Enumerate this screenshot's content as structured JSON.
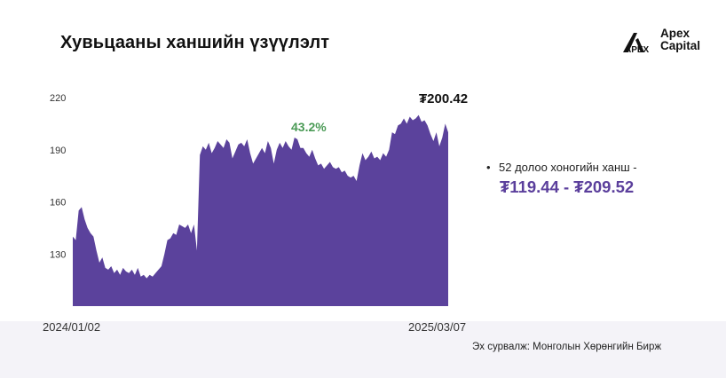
{
  "title": "Хувьцааны ханшийн үзүүлэлт",
  "logo": {
    "line1": "Apex",
    "line2": "Capital",
    "mark": "APEX"
  },
  "last_price": "₮200.42",
  "change_label": "43.2%",
  "range": {
    "label": "52 долоо хоногийн ханш -",
    "value": "₮119.44 - ₮209.52"
  },
  "source": "Эх сурвалж: Монголын Хөрөнгийн Бирж",
  "colors": {
    "area": "#5b429c",
    "change": "#4a9a55",
    "range": "#5b3f9c",
    "background_band": "#f4f3f8"
  },
  "chart_data": {
    "type": "area",
    "title": "Хувьцааны ханшийн үзүүлэлт",
    "xlabel": "",
    "ylabel": "",
    "x_start_label": "2024/01/02",
    "x_end_label": "2025/03/07",
    "y_ticks": [
      130,
      160,
      190,
      220
    ],
    "ylim": [
      100,
      220
    ],
    "grid": false,
    "legend": "none",
    "series": [
      {
        "values": [
          140,
          138,
          155,
          157,
          150,
          145,
          142,
          140,
          132,
          125,
          128,
          122,
          121,
          123,
          119,
          121,
          118,
          122,
          120,
          119,
          121,
          118,
          122,
          117,
          118,
          116,
          118,
          117,
          119,
          121,
          123,
          130,
          138,
          139,
          142,
          141,
          147,
          146,
          145,
          147,
          142,
          147,
          132,
          187,
          192,
          190,
          194,
          188,
          191,
          195,
          193,
          191,
          196,
          194,
          185,
          189,
          193,
          194,
          192,
          196,
          188,
          182,
          185,
          188,
          191,
          188,
          195,
          191,
          182,
          190,
          194,
          191,
          195,
          192,
          190,
          197,
          196,
          191,
          191,
          188,
          186,
          190,
          185,
          181,
          182,
          179,
          181,
          183,
          180,
          179,
          180,
          177,
          178,
          175,
          174,
          175,
          172,
          181,
          188,
          184,
          186,
          189,
          185,
          186,
          184,
          188,
          186,
          190,
          200,
          199,
          204,
          205,
          208,
          205,
          209,
          207,
          208,
          210,
          206,
          207,
          204,
          199,
          195,
          200,
          192,
          197,
          205,
          200
        ]
      }
    ]
  }
}
